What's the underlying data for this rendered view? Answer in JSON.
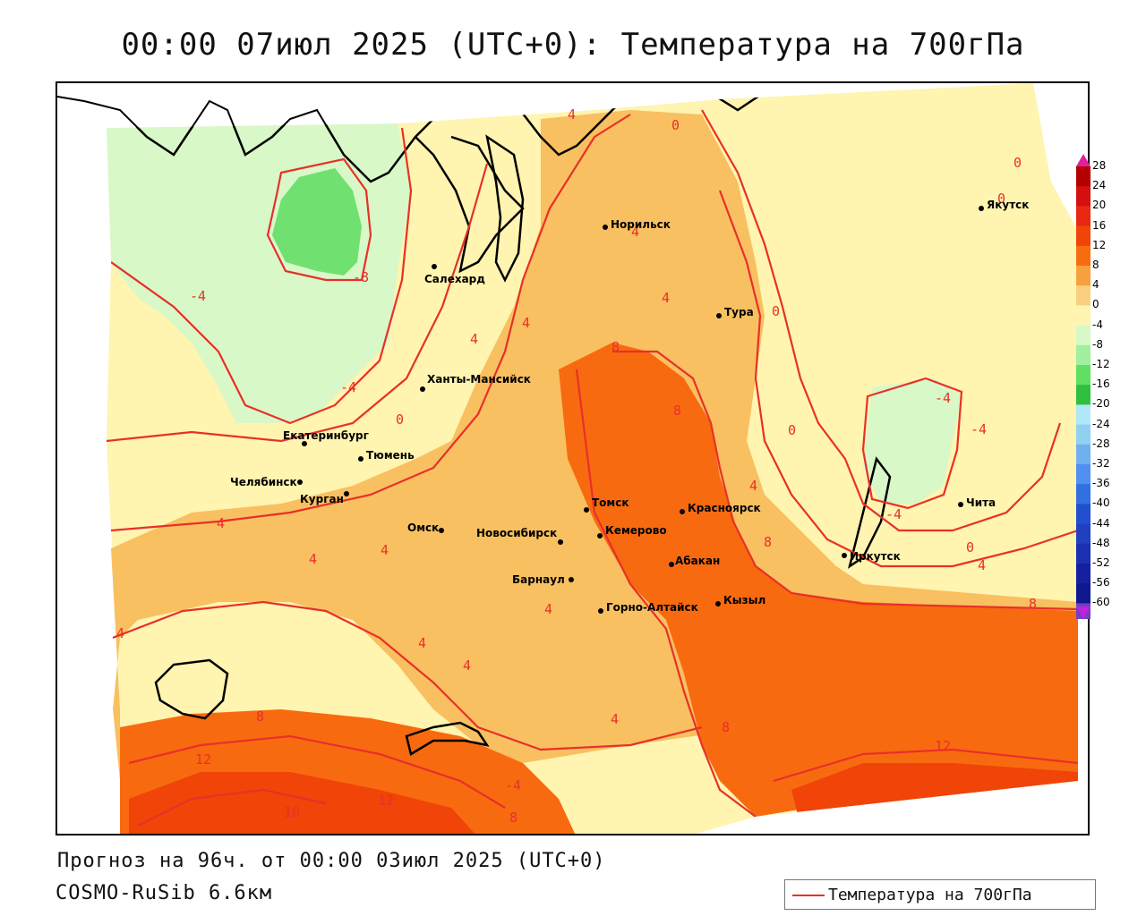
{
  "title": "00:00 07июл 2025 (UTC+0): Температура на 700гПа",
  "footer": {
    "forecast": "Прогноз на 96ч. от 00:00 03июл 2025 (UTC+0)",
    "model": "COSMO-RuSib 6.6км"
  },
  "legend": {
    "label": "Температура на 700гПа",
    "line_color": "#e8302a"
  },
  "colorbar": {
    "labels": [
      "28",
      "24",
      "20",
      "16",
      "12",
      "8",
      "4",
      "0",
      "-4",
      "-8",
      "-12",
      "-16",
      "-20",
      "-24",
      "-28",
      "-32",
      "-36",
      "-40",
      "-44",
      "-48",
      "-52",
      "-56",
      "-60"
    ],
    "colors": [
      "#b40000",
      "#d41010",
      "#e82810",
      "#f04408",
      "#f86c10",
      "#f8a040",
      "#f8d080",
      "#fff4b0",
      "#d8f8c8",
      "#a0f0a0",
      "#60e060",
      "#30c040",
      "#b0e8f8",
      "#90d0f0",
      "#70b0f0",
      "#5090f0",
      "#3070e0",
      "#2050d0",
      "#2040c0",
      "#1a30b0",
      "#1420a0",
      "#101890",
      "#7040c0"
    ]
  },
  "cities": [
    {
      "name": "Норильск"
    },
    {
      "name": "Салехард"
    },
    {
      "name": "Тура"
    },
    {
      "name": "Якутск"
    },
    {
      "name": "Ханты-Мансийск"
    },
    {
      "name": "Екатеринбург"
    },
    {
      "name": "Тюмень"
    },
    {
      "name": "Челябинск"
    },
    {
      "name": "Курган"
    },
    {
      "name": "Омск"
    },
    {
      "name": "Томск"
    },
    {
      "name": "Новосибирск"
    },
    {
      "name": "Кемерово"
    },
    {
      "name": "Красноярск"
    },
    {
      "name": "Барнаул"
    },
    {
      "name": "Абакан"
    },
    {
      "name": "Горно-Алтайск"
    },
    {
      "name": "Кызыл"
    },
    {
      "name": "Иркутск"
    },
    {
      "name": "Чита"
    }
  ],
  "isoline_labels": [
    "-4",
    "-8",
    "-4",
    "-4",
    "0",
    "-4",
    "-4",
    "-4",
    "0",
    "0",
    "0",
    "0",
    "0",
    "0",
    "4",
    "4",
    "4",
    "4",
    "4",
    "4",
    "4",
    "4",
    "4",
    "4",
    "4",
    "4",
    "4",
    "4",
    "4",
    "8",
    "8",
    "8",
    "8",
    "8",
    "8",
    "8",
    "12",
    "12",
    "12",
    "16"
  ]
}
